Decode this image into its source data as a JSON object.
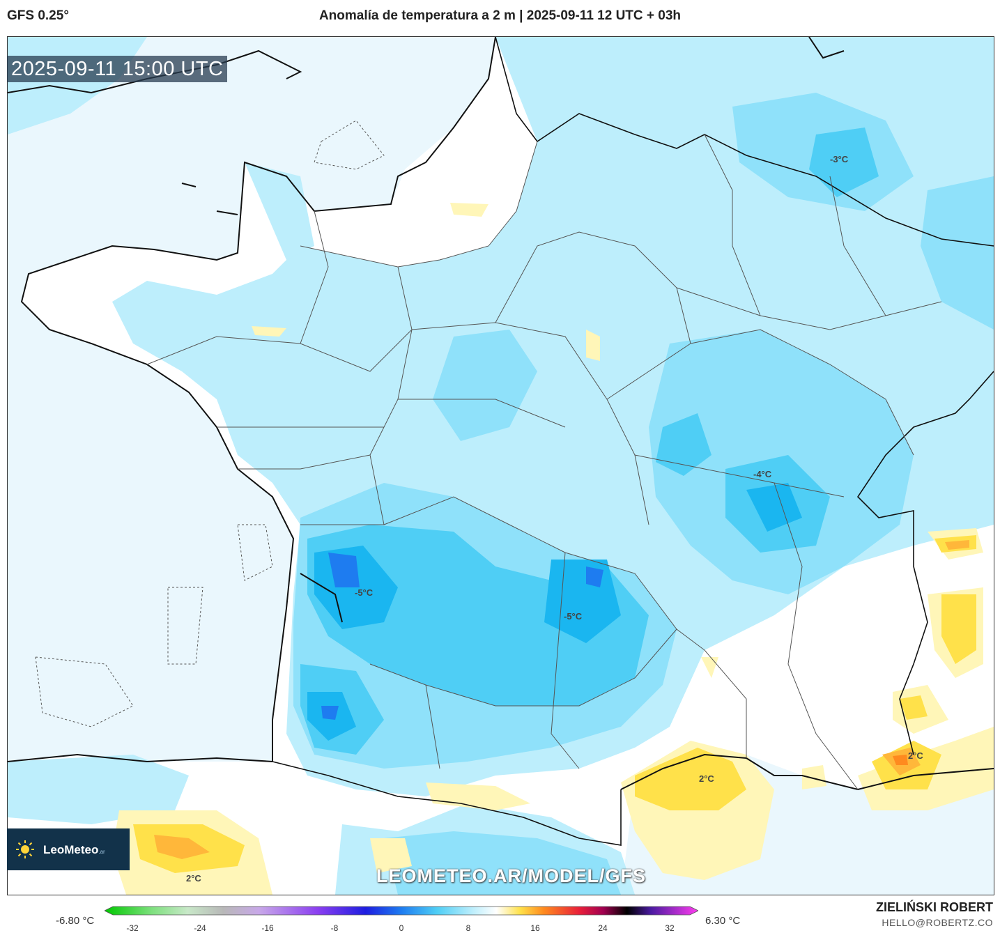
{
  "header": {
    "model": "GFS 0.25°",
    "title": "Anomalía de temperatura a 2 m | 2025-09-11 12 UTC + 03h"
  },
  "map": {
    "timestamp": "2025-09-11 15:00 UTC",
    "watermark": "LEOMETEO.AR/MODEL/GFS",
    "logo": {
      "name": "LeoMeteo",
      "tld": ".ar"
    },
    "contour_labels": [
      "-3°C",
      "-4°C",
      "-5°C",
      "-5°C",
      "2°C",
      "2°C",
      "2°C"
    ],
    "colors": {
      "land_white": "#ffffff",
      "sea_pale": "#eaf7fd",
      "anomaly_minus1": "#bdeefc",
      "anomaly_minus2": "#8fe1fa",
      "anomaly_minus3": "#4fcef5",
      "anomaly_minus4": "#1ab6f0",
      "anomaly_minus5": "#1e7cf0",
      "anomaly_plus1": "#fff6b8",
      "anomaly_plus2": "#ffe14a",
      "anomaly_plus3": "#ffb73a",
      "anomaly_plus4": "#ff8a1f"
    }
  },
  "colorbar": {
    "min_label": "-6.80 °C",
    "max_label": "6.30 °C",
    "ticks": [
      "-32",
      "-24",
      "-16",
      "-8",
      "0",
      "8",
      "16",
      "24",
      "32"
    ]
  },
  "credits": {
    "author": "ZIELIŃSKI ROBERT",
    "email": "HELLO@ROBERTZ.CO"
  }
}
